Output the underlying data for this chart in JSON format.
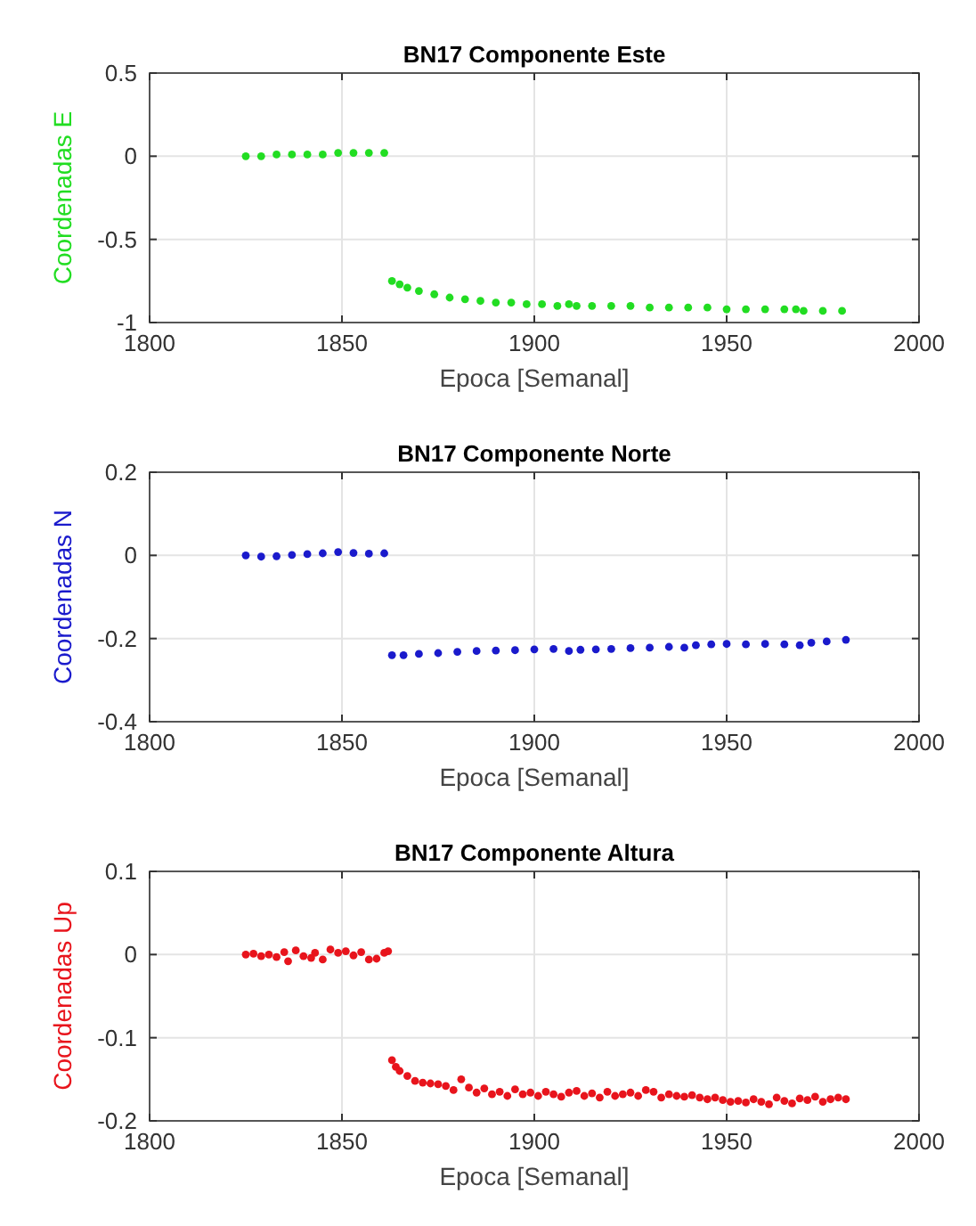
{
  "chart_data": [
    {
      "type": "scatter",
      "title": "BN17 Componente Este",
      "xlabel": "Epoca [Semanal]",
      "ylabel": "Coordenadas E",
      "xlim": [
        1800,
        2000
      ],
      "xticks": [
        1800,
        1850,
        1900,
        1950,
        2000
      ],
      "ylim": [
        -1,
        0.5
      ],
      "yticks": [
        -1,
        -0.5,
        0,
        0.5
      ],
      "grid": true,
      "marker": "circle",
      "series": [
        {
          "color": "#22dd22",
          "x": [
            1825,
            1829,
            1833,
            1837,
            1841,
            1845,
            1849,
            1853,
            1857,
            1861,
            1863,
            1865,
            1867,
            1870,
            1874,
            1878,
            1882,
            1886,
            1890,
            1894,
            1898,
            1902,
            1906,
            1909,
            1911,
            1915,
            1920,
            1925,
            1930,
            1935,
            1940,
            1945,
            1950,
            1955,
            1960,
            1965,
            1968,
            1970,
            1975,
            1980
          ],
          "values": [
            0,
            0,
            0.01,
            0.01,
            0.01,
            0.01,
            0.02,
            0.02,
            0.02,
            0.02,
            -0.75,
            -0.77,
            -0.79,
            -0.81,
            -0.83,
            -0.85,
            -0.86,
            -0.87,
            -0.88,
            -0.88,
            -0.89,
            -0.89,
            -0.9,
            -0.89,
            -0.9,
            -0.9,
            -0.9,
            -0.9,
            -0.91,
            -0.91,
            -0.91,
            -0.91,
            -0.92,
            -0.92,
            -0.92,
            -0.92,
            -0.92,
            -0.93,
            -0.93,
            -0.93
          ]
        }
      ]
    },
    {
      "type": "scatter",
      "title": "BN17 Componente Norte",
      "xlabel": "Epoca [Semanal]",
      "ylabel": "Coordenadas N",
      "xlim": [
        1800,
        2000
      ],
      "xticks": [
        1800,
        1850,
        1900,
        1950,
        2000
      ],
      "ylim": [
        -0.4,
        0.2
      ],
      "yticks": [
        -0.4,
        -0.2,
        0,
        0.2
      ],
      "grid": true,
      "marker": "circle",
      "series": [
        {
          "color": "#1a1acc",
          "x": [
            1825,
            1829,
            1833,
            1837,
            1841,
            1845,
            1849,
            1853,
            1857,
            1861,
            1863,
            1866,
            1870,
            1875,
            1880,
            1885,
            1890,
            1895,
            1900,
            1905,
            1909,
            1912,
            1916,
            1920,
            1925,
            1930,
            1935,
            1939,
            1942,
            1946,
            1950,
            1955,
            1960,
            1965,
            1969,
            1972,
            1976,
            1981
          ],
          "values": [
            0,
            -0.003,
            -0.002,
            0.001,
            0.003,
            0.005,
            0.008,
            0.006,
            0.004,
            0.005,
            -0.24,
            -0.24,
            -0.237,
            -0.235,
            -0.232,
            -0.23,
            -0.229,
            -0.228,
            -0.226,
            -0.225,
            -0.23,
            -0.227,
            -0.226,
            -0.225,
            -0.223,
            -0.222,
            -0.22,
            -0.222,
            -0.216,
            -0.214,
            -0.213,
            -0.214,
            -0.213,
            -0.214,
            -0.216,
            -0.21,
            -0.207,
            -0.203
          ]
        }
      ]
    },
    {
      "type": "scatter",
      "title": "BN17 Componente Altura",
      "xlabel": "Epoca [Semanal]",
      "ylabel": "Coordenadas Up",
      "xlim": [
        1800,
        2000
      ],
      "xticks": [
        1800,
        1850,
        1900,
        1950,
        2000
      ],
      "ylim": [
        -0.2,
        0.1
      ],
      "yticks": [
        -0.2,
        -0.1,
        0,
        0.1
      ],
      "grid": true,
      "marker": "circle",
      "series": [
        {
          "color": "#e8141c",
          "x": [
            1825,
            1827,
            1829,
            1831,
            1833,
            1835,
            1836,
            1838,
            1840,
            1842,
            1843,
            1845,
            1847,
            1849,
            1851,
            1853,
            1855,
            1857,
            1859,
            1861,
            1862,
            1863,
            1864,
            1865,
            1867,
            1869,
            1871,
            1873,
            1875,
            1877,
            1879,
            1881,
            1883,
            1885,
            1887,
            1889,
            1891,
            1893,
            1895,
            1897,
            1899,
            1901,
            1903,
            1905,
            1907,
            1909,
            1911,
            1913,
            1915,
            1917,
            1919,
            1921,
            1923,
            1925,
            1927,
            1929,
            1931,
            1933,
            1935,
            1937,
            1939,
            1941,
            1943,
            1945,
            1947,
            1949,
            1951,
            1953,
            1955,
            1957,
            1959,
            1961,
            1963,
            1965,
            1967,
            1969,
            1971,
            1973,
            1975,
            1977,
            1979,
            1981
          ],
          "values": [
            0,
            0.001,
            -0.002,
            0,
            -0.003,
            0.003,
            -0.008,
            0.005,
            -0.002,
            -0.004,
            0.002,
            -0.006,
            0.006,
            0.002,
            0.004,
            -0.001,
            0.003,
            -0.006,
            -0.005,
            0.002,
            0.004,
            -0.127,
            -0.135,
            -0.14,
            -0.146,
            -0.152,
            -0.154,
            -0.155,
            -0.156,
            -0.158,
            -0.163,
            -0.15,
            -0.16,
            -0.166,
            -0.161,
            -0.168,
            -0.165,
            -0.17,
            -0.162,
            -0.168,
            -0.166,
            -0.17,
            -0.165,
            -0.168,
            -0.171,
            -0.166,
            -0.164,
            -0.17,
            -0.167,
            -0.172,
            -0.165,
            -0.17,
            -0.168,
            -0.166,
            -0.17,
            -0.163,
            -0.165,
            -0.172,
            -0.168,
            -0.17,
            -0.171,
            -0.169,
            -0.172,
            -0.174,
            -0.172,
            -0.175,
            -0.177,
            -0.176,
            -0.178,
            -0.174,
            -0.177,
            -0.18,
            -0.172,
            -0.176,
            -0.179,
            -0.173,
            -0.175,
            -0.171,
            -0.177,
            -0.174,
            -0.172,
            -0.174
          ]
        }
      ]
    }
  ]
}
